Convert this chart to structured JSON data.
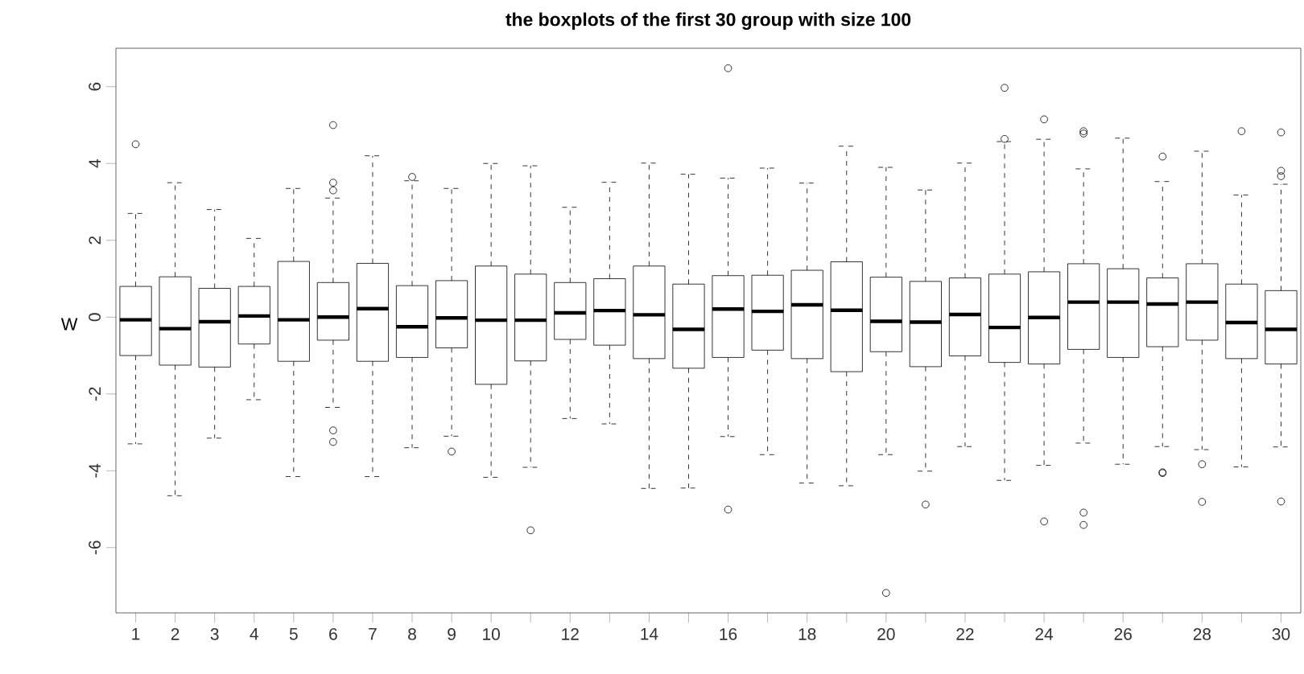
{
  "chart_data": {
    "type": "box",
    "title": "the boxplots of the first 30 group with size 100",
    "ylabel": "W",
    "categories": [
      "1",
      "2",
      "3",
      "4",
      "5",
      "6",
      "7",
      "8",
      "9",
      "10",
      null,
      "12",
      null,
      "14",
      null,
      "16",
      null,
      "18",
      null,
      "20",
      null,
      "22",
      null,
      "24",
      null,
      "26",
      null,
      "28",
      null,
      "30"
    ],
    "ylim": [
      -7.7,
      7.0
    ],
    "yticks": [
      -6,
      -4,
      -2,
      0,
      2,
      4,
      6
    ],
    "grid": false,
    "color": "#000000",
    "marker": "circle",
    "boxes": [
      {
        "low": -3.3,
        "q1": -1.0,
        "median": -0.07,
        "q3": 0.8,
        "high": 2.7,
        "outliers": [
          4.5
        ]
      },
      {
        "low": -4.65,
        "q1": -1.25,
        "median": -0.3,
        "q3": 1.05,
        "high": 3.5
      },
      {
        "low": -3.15,
        "q1": -1.3,
        "median": -0.12,
        "q3": 0.75,
        "high": 2.8
      },
      {
        "low": -2.15,
        "q1": -0.7,
        "median": 0.03,
        "q3": 0.8,
        "high": 2.05
      },
      {
        "low": -4.15,
        "q1": -1.15,
        "median": -0.07,
        "q3": 1.45,
        "high": 3.35
      },
      {
        "low": -2.35,
        "q1": -0.6,
        "median": 0.0,
        "q3": 0.9,
        "high": 3.1,
        "outliers": [
          5.0,
          3.5,
          3.3,
          -2.95,
          -3.25
        ]
      },
      {
        "low": -4.15,
        "q1": -1.15,
        "median": 0.22,
        "q3": 1.4,
        "high": 4.2
      },
      {
        "low": -3.4,
        "q1": -1.05,
        "median": -0.25,
        "q3": 0.82,
        "high": 3.55,
        "outliers": [
          3.65
        ]
      },
      {
        "low": -3.1,
        "q1": -0.8,
        "median": -0.02,
        "q3": 0.95,
        "high": 3.35,
        "outliers": [
          -3.5
        ]
      },
      {
        "low": -4.17,
        "q1": -1.75,
        "median": -0.08,
        "q3": 1.33,
        "high": 4.0
      },
      {
        "low": -3.91,
        "q1": -1.14,
        "median": -0.08,
        "q3": 1.12,
        "high": 3.94,
        "outliers": [
          -5.55
        ]
      },
      {
        "low": -2.64,
        "q1": -0.58,
        "median": 0.11,
        "q3": 0.9,
        "high": 2.86
      },
      {
        "low": -2.78,
        "q1": -0.73,
        "median": 0.17,
        "q3": 1.0,
        "high": 3.51
      },
      {
        "low": -4.46,
        "q1": -1.08,
        "median": 0.06,
        "q3": 1.33,
        "high": 4.01
      },
      {
        "low": -4.45,
        "q1": -1.33,
        "median": -0.32,
        "q3": 0.86,
        "high": 3.72
      },
      {
        "low": -3.11,
        "q1": -1.05,
        "median": 0.21,
        "q3": 1.08,
        "high": 3.62,
        "outliers": [
          6.48,
          -5.01
        ]
      },
      {
        "low": -3.58,
        "q1": -0.86,
        "median": 0.15,
        "q3": 1.09,
        "high": 3.88
      },
      {
        "low": -4.32,
        "q1": -1.08,
        "median": 0.32,
        "q3": 1.22,
        "high": 3.49
      },
      {
        "low": -4.39,
        "q1": -1.42,
        "median": 0.18,
        "q3": 1.44,
        "high": 4.45
      },
      {
        "low": -3.58,
        "q1": -0.9,
        "median": -0.11,
        "q3": 1.04,
        "high": 3.9,
        "outliers": [
          -7.18
        ]
      },
      {
        "low": -4.01,
        "q1": -1.29,
        "median": -0.13,
        "q3": 0.93,
        "high": 3.31,
        "outliers": [
          -4.88
        ]
      },
      {
        "low": -3.37,
        "q1": -1.01,
        "median": 0.07,
        "q3": 1.02,
        "high": 4.01
      },
      {
        "low": -4.25,
        "q1": -1.18,
        "median": -0.27,
        "q3": 1.12,
        "high": 4.57,
        "outliers": [
          5.97,
          4.64
        ]
      },
      {
        "low": -3.86,
        "q1": -1.22,
        "median": -0.01,
        "q3": 1.18,
        "high": 4.63,
        "outliers": [
          5.15,
          -5.32
        ]
      },
      {
        "low": -3.28,
        "q1": -0.84,
        "median": 0.39,
        "q3": 1.39,
        "high": 3.86,
        "outliers": [
          4.84,
          4.78,
          -5.09,
          -5.41
        ]
      },
      {
        "low": -3.83,
        "q1": -1.05,
        "median": 0.39,
        "q3": 1.26,
        "high": 4.66
      },
      {
        "low": -3.37,
        "q1": -0.77,
        "median": 0.34,
        "q3": 1.02,
        "high": 3.53,
        "outliers": [
          4.18,
          -4.04,
          -4.06
        ]
      },
      {
        "low": -3.45,
        "q1": -0.6,
        "median": 0.39,
        "q3": 1.39,
        "high": 4.32,
        "outliers": [
          -3.83,
          -4.81
        ]
      },
      {
        "low": -3.9,
        "q1": -1.08,
        "median": -0.14,
        "q3": 0.86,
        "high": 3.18,
        "outliers": [
          4.84
        ]
      },
      {
        "low": -3.38,
        "q1": -1.22,
        "median": -0.32,
        "q3": 0.69,
        "high": 3.46,
        "outliers": [
          4.81,
          3.81,
          3.67,
          -4.8
        ]
      }
    ]
  }
}
